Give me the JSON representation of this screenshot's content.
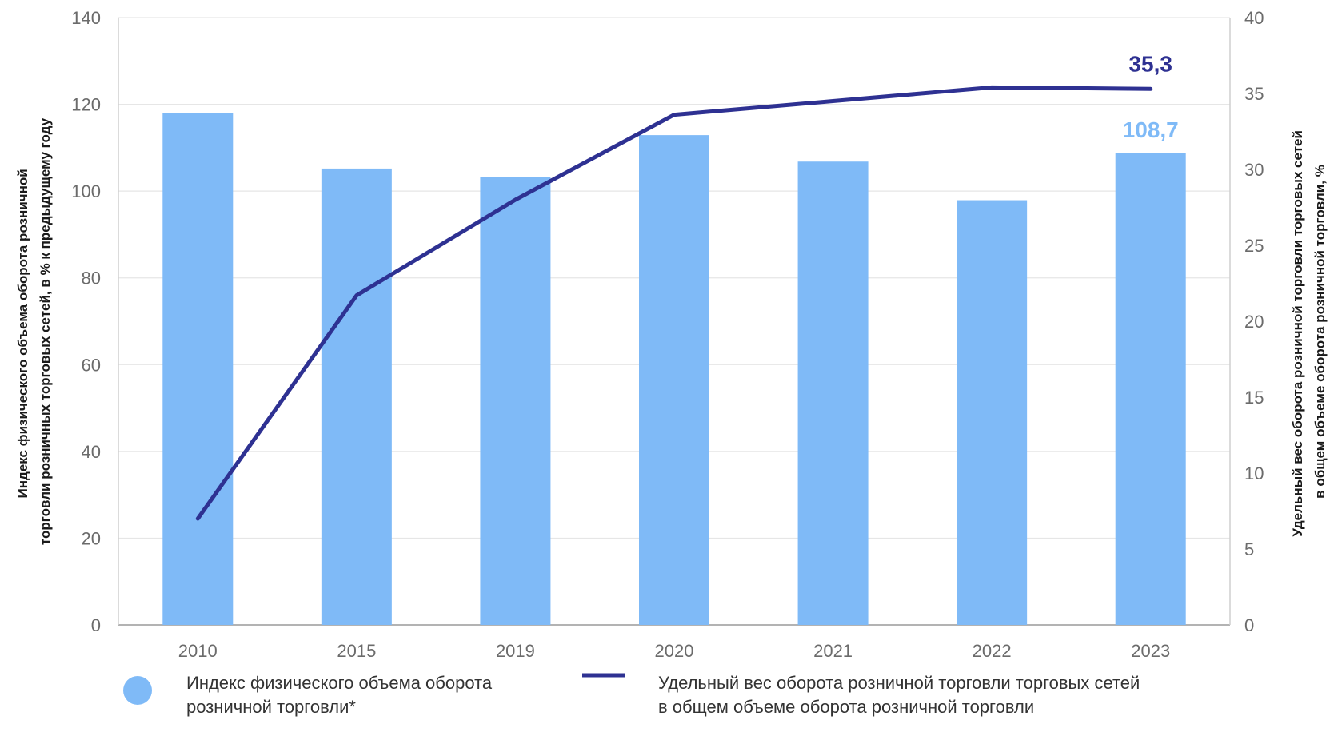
{
  "chart_data": {
    "type": "bar",
    "categories": [
      "2010",
      "2015",
      "2019",
      "2020",
      "2021",
      "2022",
      "2023"
    ],
    "series": [
      {
        "type": "bar",
        "axis": "left",
        "color": "#7fbaf7",
        "values": [
          118,
          105.2,
          103.2,
          112.9,
          106.8,
          97.9,
          108.7
        ],
        "data_labels": {
          "6": "108,7"
        }
      },
      {
        "type": "line",
        "axis": "right",
        "color": "#2e3192",
        "values": [
          7,
          21.7,
          28,
          33.6,
          34.5,
          35.4,
          35.3
        ],
        "data_labels": {
          "6": "35,3"
        }
      }
    ],
    "ylabel": "Индекс физического объема оборота розничной торговли розничных торговых сетей, в % к предыдущему году",
    "ylabel_lines": [
      "Индекс физического объема оборота розничной",
      "торговли розничных торговых сетей, в % к предыдущему году"
    ],
    "y2label": "Удельный вес оборота розничной торговли торговых сетей в общем объеме оборота розничной торговли, %",
    "y2label_lines": [
      "Удельный вес оборота розничной торговли торговых сетей",
      "в общем объеме оборота розничной торговли, %"
    ],
    "ylim": [
      0,
      140
    ],
    "y2lim": [
      0,
      40
    ],
    "yticks": [
      "0",
      "20",
      "40",
      "60",
      "80",
      "100",
      "120",
      "140"
    ],
    "y2ticks": [
      "0",
      "5",
      "10",
      "15",
      "20",
      "25",
      "30",
      "35",
      "40"
    ],
    "grid": true,
    "legend_position": "bottom",
    "legend": [
      {
        "lines": [
          "Индекс физического объема оборота",
          "розничной торговли*"
        ]
      },
      {
        "lines": [
          "Удельный вес оборота розничной торговли торговых сетей",
          "в общем объеме оборота розничной торговли"
        ]
      }
    ]
  }
}
